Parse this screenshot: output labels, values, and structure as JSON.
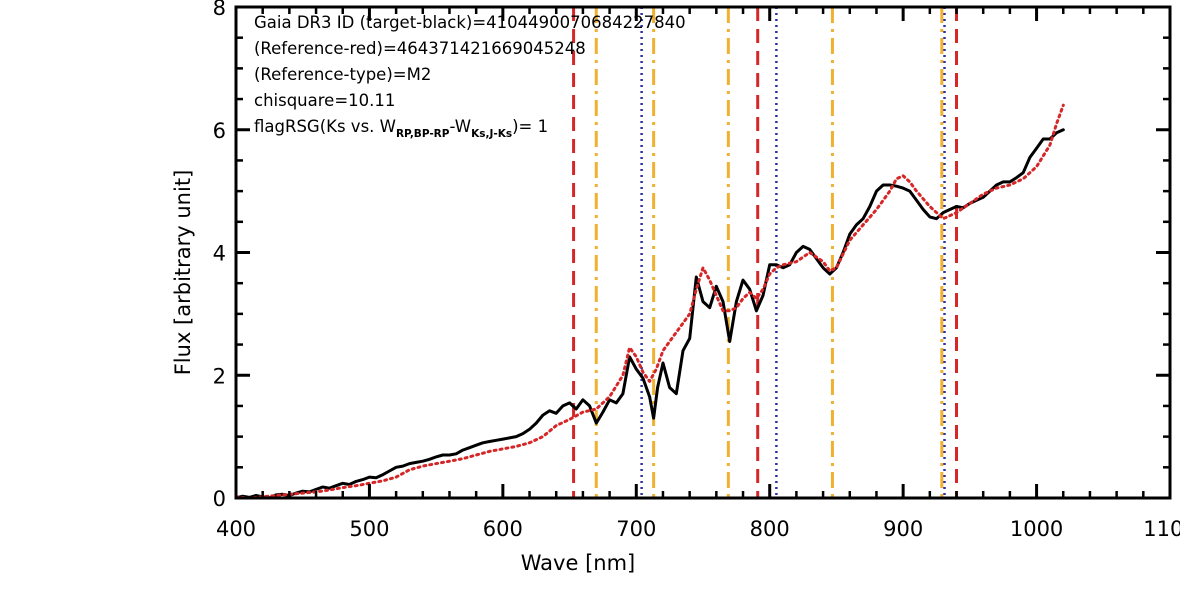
{
  "chart_data": {
    "type": "line",
    "xlabel": "Wave [nm]",
    "ylabel": "Flux [arbitrary unit]",
    "xlim": [
      400,
      1100
    ],
    "ylim": [
      0,
      8
    ],
    "x_ticks": [
      "400",
      "500",
      "600",
      "700",
      "800",
      "900",
      "1000",
      "1100"
    ],
    "y_ticks": [
      "0",
      "2",
      "4",
      "6",
      "8"
    ],
    "annotations": [
      "Gaia DR3 ID (target-black)=4104490070684227840",
      "(Reference-red)=4643714216690452​48",
      "(Reference-type)=M2",
      "chisquare=10.11"
    ],
    "flag_annotation": {
      "prefix": "flagRSG(Ks vs. W",
      "sub1": "RP,BP-RP",
      "mid": "-W",
      "sub2": "Ks,J-Ks",
      "suffix": ")= 1"
    },
    "series": [
      {
        "color": "#000000",
        "style": "solid",
        "x": [
          400,
          405,
          410,
          415,
          420,
          425,
          430,
          435,
          440,
          445,
          450,
          455,
          460,
          465,
          470,
          475,
          480,
          485,
          490,
          495,
          500,
          505,
          510,
          515,
          520,
          525,
          530,
          535,
          540,
          545,
          550,
          555,
          560,
          565,
          570,
          575,
          580,
          585,
          590,
          595,
          600,
          605,
          610,
          615,
          620,
          625,
          630,
          635,
          640,
          645,
          650,
          655,
          660,
          665,
          670,
          675,
          680,
          685,
          690,
          695,
          700,
          705,
          710,
          713,
          716,
          720,
          725,
          730,
          735,
          740,
          745,
          750,
          755,
          760,
          765,
          770,
          775,
          780,
          785,
          790,
          795,
          800,
          805,
          810,
          815,
          820,
          825,
          830,
          835,
          840,
          845,
          850,
          855,
          860,
          865,
          870,
          875,
          880,
          885,
          890,
          895,
          900,
          905,
          910,
          915,
          920,
          925,
          930,
          935,
          940,
          945,
          950,
          955,
          960,
          965,
          970,
          975,
          980,
          985,
          990,
          995,
          1000,
          1005,
          1010,
          1015,
          1020
        ],
        "y": [
          0.0,
          0.03,
          0.01,
          0.04,
          0.02,
          0.0,
          0.05,
          0.06,
          0.04,
          0.08,
          0.11,
          0.1,
          0.14,
          0.18,
          0.16,
          0.2,
          0.24,
          0.22,
          0.27,
          0.3,
          0.34,
          0.33,
          0.38,
          0.44,
          0.5,
          0.52,
          0.56,
          0.58,
          0.6,
          0.63,
          0.67,
          0.7,
          0.7,
          0.72,
          0.78,
          0.82,
          0.86,
          0.9,
          0.92,
          0.94,
          0.96,
          0.98,
          1.0,
          1.05,
          1.12,
          1.22,
          1.35,
          1.42,
          1.38,
          1.5,
          1.55,
          1.45,
          1.6,
          1.5,
          1.22,
          1.4,
          1.6,
          1.55,
          1.7,
          2.3,
          2.1,
          1.95,
          1.65,
          1.3,
          1.8,
          2.2,
          1.8,
          1.7,
          2.4,
          2.6,
          3.6,
          3.2,
          3.1,
          3.45,
          3.2,
          2.55,
          3.2,
          3.55,
          3.4,
          3.05,
          3.3,
          3.8,
          3.8,
          3.75,
          3.8,
          4.0,
          4.1,
          4.05,
          3.9,
          3.75,
          3.65,
          3.75,
          4.0,
          4.3,
          4.45,
          4.55,
          4.75,
          5.0,
          5.1,
          5.1,
          5.08,
          5.05,
          5.0,
          4.85,
          4.7,
          4.58,
          4.55,
          4.65,
          4.7,
          4.75,
          4.73,
          4.8,
          4.85,
          4.9,
          5.0,
          5.1,
          5.15,
          5.15,
          5.22,
          5.3,
          5.55,
          5.7,
          5.85,
          5.85,
          5.95,
          6.0
        ]
      },
      {
        "color": "#d62728",
        "style": "dotted",
        "x": [
          400,
          410,
          420,
          430,
          440,
          450,
          460,
          470,
          480,
          490,
          500,
          510,
          520,
          530,
          540,
          550,
          560,
          570,
          580,
          590,
          600,
          610,
          620,
          630,
          640,
          650,
          660,
          670,
          680,
          690,
          695,
          700,
          705,
          710,
          715,
          720,
          730,
          740,
          745,
          750,
          755,
          760,
          765,
          770,
          775,
          780,
          785,
          790,
          795,
          800,
          805,
          810,
          820,
          830,
          840,
          845,
          850,
          860,
          870,
          880,
          890,
          895,
          900,
          905,
          910,
          920,
          930,
          940,
          950,
          960,
          970,
          980,
          990,
          1000,
          1010,
          1015,
          1020
        ],
        "y": [
          0.02,
          0.0,
          0.02,
          0.04,
          0.06,
          0.08,
          0.1,
          0.13,
          0.17,
          0.2,
          0.24,
          0.28,
          0.34,
          0.46,
          0.52,
          0.56,
          0.6,
          0.64,
          0.7,
          0.76,
          0.8,
          0.84,
          0.9,
          1.0,
          1.18,
          1.28,
          1.4,
          1.45,
          1.65,
          2.0,
          2.45,
          2.3,
          2.05,
          1.9,
          2.1,
          2.4,
          2.7,
          3.0,
          3.4,
          3.75,
          3.55,
          3.3,
          3.05,
          3.05,
          3.1,
          3.25,
          3.35,
          3.25,
          3.4,
          3.65,
          3.75,
          3.8,
          3.85,
          4.0,
          3.85,
          3.7,
          3.75,
          4.2,
          4.45,
          4.7,
          5.0,
          5.2,
          5.25,
          5.15,
          5.0,
          4.75,
          4.55,
          4.65,
          4.8,
          4.95,
          5.05,
          5.1,
          5.2,
          5.4,
          5.75,
          6.1,
          6.4
        ]
      }
    ],
    "vertical_lines": [
      {
        "x": 653,
        "color": "#d62728",
        "style": "dashed"
      },
      {
        "x": 670,
        "color": "#f0b030",
        "style": "dashdot"
      },
      {
        "x": 704,
        "color": "#3030a0",
        "style": "dotted"
      },
      {
        "x": 713,
        "color": "#f0b030",
        "style": "dashdot"
      },
      {
        "x": 769,
        "color": "#f0b030",
        "style": "dashdot"
      },
      {
        "x": 791,
        "color": "#d62728",
        "style": "dashed"
      },
      {
        "x": 805,
        "color": "#3030a0",
        "style": "dotted"
      },
      {
        "x": 847,
        "color": "#f0b030",
        "style": "dashdot"
      },
      {
        "x": 929,
        "color": "#f0b030",
        "style": "dashdot"
      },
      {
        "x": 931,
        "color": "#3030a0",
        "style": "dotted"
      },
      {
        "x": 940,
        "color": "#d62728",
        "style": "dashed"
      }
    ],
    "grid": false
  }
}
